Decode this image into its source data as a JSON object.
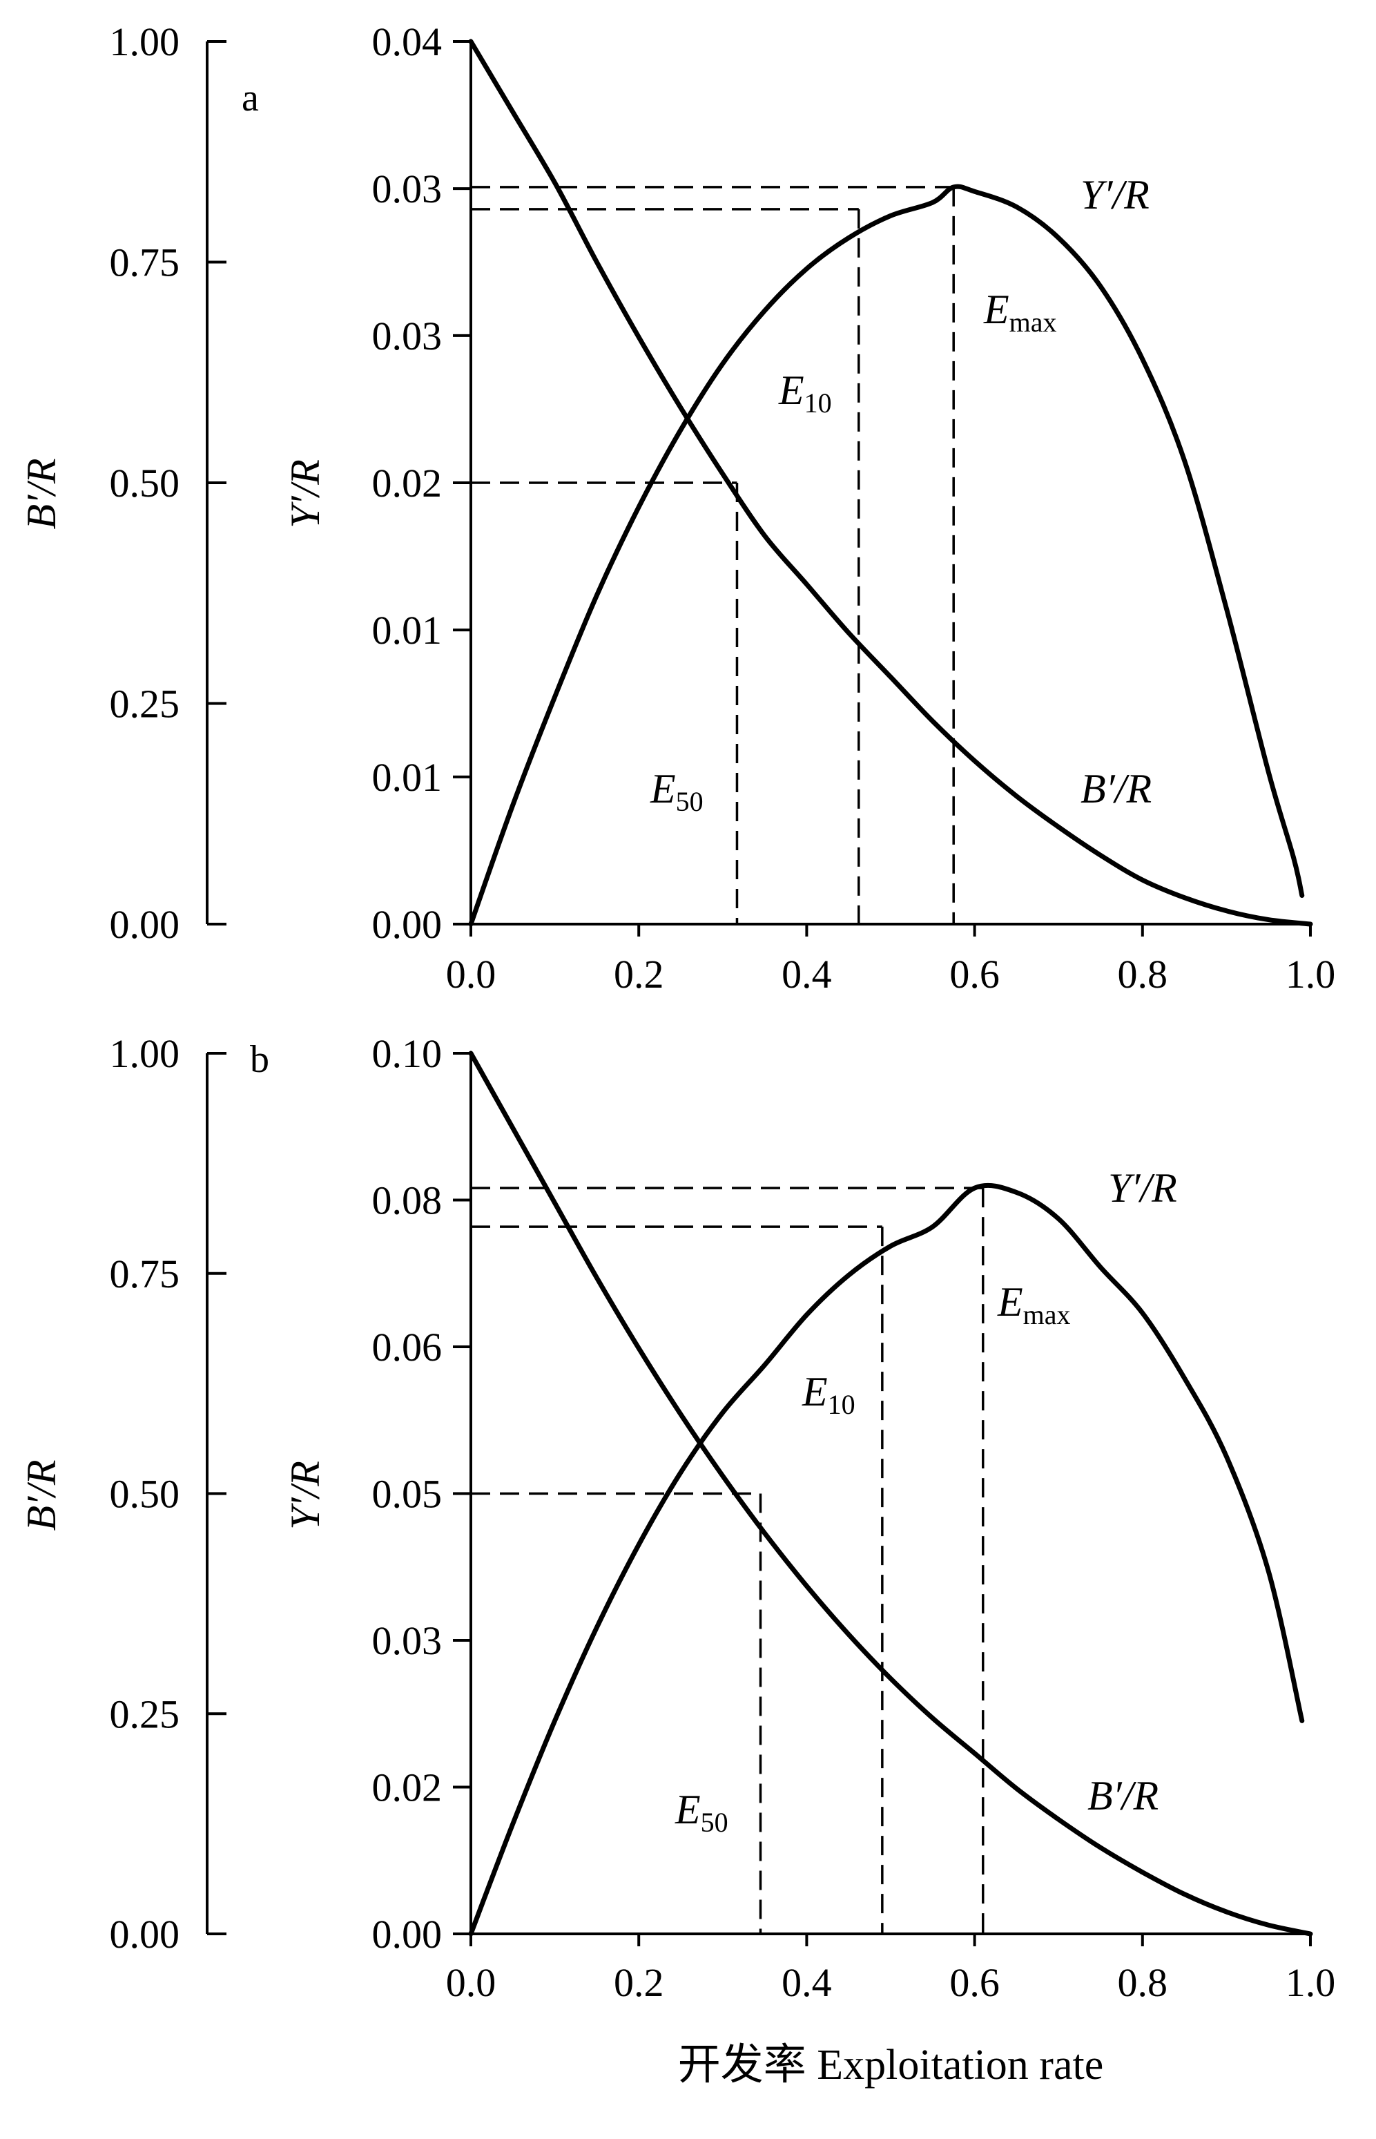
{
  "chart_data": [
    {
      "type": "line",
      "panel_label": "a",
      "xlabel": "开发率  Exploitation rate",
      "x_ticks": [
        "0.0",
        "0.2",
        "0.4",
        "0.6",
        "0.8",
        "1.0"
      ],
      "xlim": [
        0,
        1
      ],
      "left_axis": {
        "label": "B′/R",
        "ylim": [
          0,
          1
        ],
        "tick_values": [
          0,
          0.25,
          0.5,
          0.75,
          1.0
        ],
        "tick_labels": [
          "0.00",
          "0.25",
          "0.50",
          "0.75",
          "1.00"
        ]
      },
      "right_axis": {
        "label": "Y′/R",
        "ylim": [
          0,
          0.04
        ],
        "tick_values": [
          0,
          0.00667,
          0.01333,
          0.02,
          0.02667,
          0.03333,
          0.04
        ],
        "tick_labels": [
          "0.00",
          "0.01",
          "0.01",
          "0.02",
          "0.03",
          "0.03",
          "0.04"
        ]
      },
      "series": [
        {
          "name": "Y′/R",
          "axis": "right",
          "x": [
            0,
            0.05,
            0.1,
            0.15,
            0.2,
            0.25,
            0.3,
            0.35,
            0.4,
            0.45,
            0.5,
            0.55,
            0.575,
            0.6,
            0.65,
            0.7,
            0.75,
            0.8,
            0.85,
            0.9,
            0.95,
            0.98,
            0.99
          ],
          "y": [
            0,
            0.0054,
            0.0103,
            0.0149,
            0.0189,
            0.0224,
            0.0254,
            0.0278,
            0.0297,
            0.0311,
            0.0321,
            0.0327,
            0.0334,
            0.0332,
            0.0325,
            0.0311,
            0.0289,
            0.0256,
            0.021,
            0.0143,
            0.0069,
            0.003,
            0.0013
          ]
        },
        {
          "name": "B′/R",
          "axis": "left",
          "x": [
            0,
            0.05,
            0.1,
            0.15,
            0.2,
            0.25,
            0.3,
            0.35,
            0.4,
            0.45,
            0.5,
            0.55,
            0.6,
            0.65,
            0.7,
            0.75,
            0.8,
            0.85,
            0.9,
            0.95,
            1.0
          ],
          "y": [
            1.0,
            0.92,
            0.84,
            0.75,
            0.665,
            0.585,
            0.51,
            0.44,
            0.385,
            0.33,
            0.28,
            0.23,
            0.185,
            0.145,
            0.11,
            0.078,
            0.05,
            0.03,
            0.015,
            0.005,
            0.0
          ]
        }
      ],
      "reference_points": [
        {
          "label": "E50",
          "x": 0.317,
          "y": 0.02
        },
        {
          "label": "E10",
          "x": 0.462,
          "y": 0.0324
        },
        {
          "label": "Emax",
          "x": 0.575,
          "y": 0.0334
        }
      ]
    },
    {
      "type": "line",
      "panel_label": "b",
      "xlabel": "开发率  Exploitation rate",
      "x_ticks": [
        "0.0",
        "0.2",
        "0.4",
        "0.6",
        "0.8",
        "1.0"
      ],
      "xlim": [
        0,
        1
      ],
      "left_axis": {
        "label": "B′/R",
        "ylim": [
          0,
          1
        ],
        "tick_values": [
          0,
          0.25,
          0.5,
          0.75,
          1.0
        ],
        "tick_labels": [
          "0.00",
          "0.25",
          "0.50",
          "0.75",
          "1.00"
        ]
      },
      "right_axis": {
        "label": "Y′/R",
        "ylim": [
          0,
          0.1
        ],
        "tick_values": [
          0,
          0.01667,
          0.03333,
          0.05,
          0.06667,
          0.08333,
          0.1
        ],
        "tick_labels": [
          "0.00",
          "0.02",
          "0.03",
          "0.05",
          "0.06",
          "0.08",
          "0.10"
        ]
      },
      "series": [
        {
          "name": "Y′/R",
          "axis": "right",
          "x": [
            0,
            0.05,
            0.1,
            0.15,
            0.2,
            0.25,
            0.3,
            0.35,
            0.4,
            0.45,
            0.5,
            0.55,
            0.6,
            0.65,
            0.7,
            0.75,
            0.8,
            0.85,
            0.9,
            0.95,
            0.99
          ],
          "y": [
            0,
            0.0125,
            0.0242,
            0.0348,
            0.0442,
            0.0524,
            0.0592,
            0.0646,
            0.0703,
            0.0748,
            0.0781,
            0.0803,
            0.0847,
            0.0842,
            0.0812,
            0.0757,
            0.0705,
            0.0631,
            0.0542,
            0.0412,
            0.0242
          ]
        },
        {
          "name": "B′/R",
          "axis": "left",
          "x": [
            0,
            0.05,
            0.1,
            0.15,
            0.2,
            0.25,
            0.3,
            0.35,
            0.4,
            0.45,
            0.5,
            0.55,
            0.6,
            0.65,
            0.7,
            0.75,
            0.8,
            0.85,
            0.9,
            0.95,
            1.0
          ],
          "y": [
            1.0,
            0.915,
            0.83,
            0.745,
            0.665,
            0.59,
            0.52,
            0.455,
            0.395,
            0.34,
            0.29,
            0.245,
            0.205,
            0.165,
            0.13,
            0.098,
            0.07,
            0.045,
            0.025,
            0.01,
            0.0
          ]
        }
      ],
      "reference_points": [
        {
          "label": "E50",
          "x": 0.345,
          "y": 0.05
        },
        {
          "label": "E10",
          "x": 0.49,
          "y": 0.0803
        },
        {
          "label": "Emax",
          "x": 0.61,
          "y": 0.0847
        }
      ]
    }
  ]
}
